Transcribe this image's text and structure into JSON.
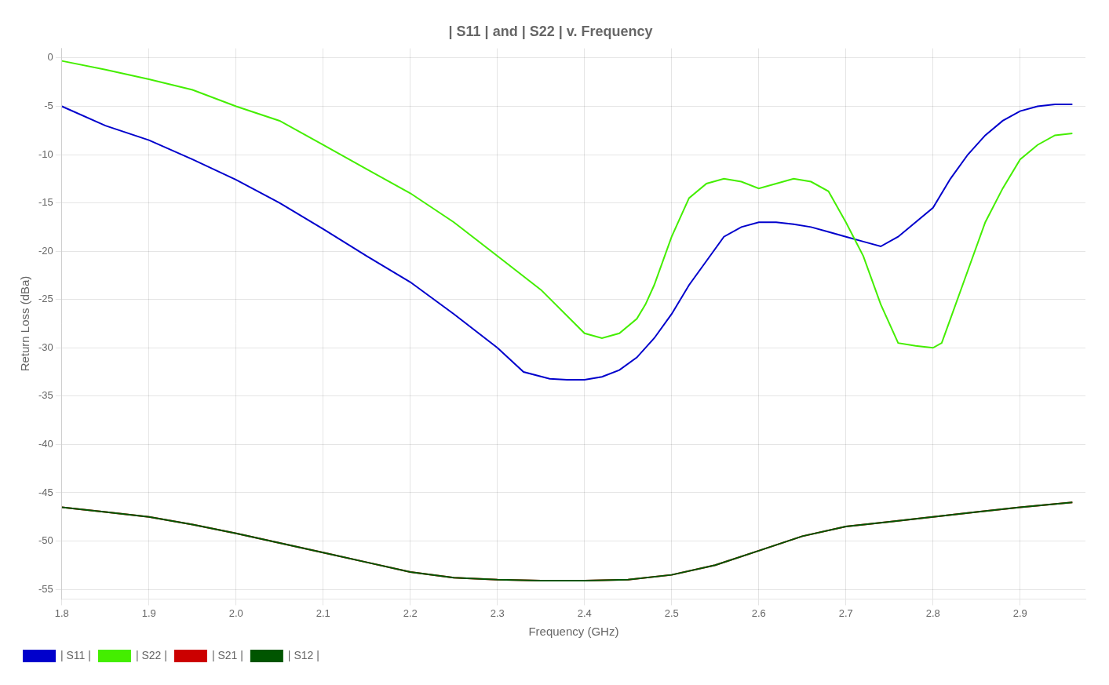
{
  "chart_data": {
    "type": "line",
    "title": "| S11 | and | S22 | v. Frequency",
    "xlabel": "Frequency (GHz)",
    "ylabel": "Return Loss (dBa)",
    "xlim": [
      1.8,
      2.975
    ],
    "ylim": [
      -56,
      1
    ],
    "xticks": [
      1.8,
      1.9,
      {
        "value": 2.0,
        "label": "2.0"
      },
      2.1,
      2.2,
      2.3,
      2.4,
      2.5,
      2.6,
      2.7,
      2.8,
      2.9
    ],
    "yticks": [
      0,
      -5,
      -10,
      -15,
      -20,
      -25,
      -30,
      -35,
      -40,
      -45,
      -50,
      -55
    ],
    "grid": true,
    "legend": "lower left",
    "series": [
      {
        "name": "| S12 |",
        "color": "#005500",
        "x": [
          1.8,
          1.85,
          1.9,
          1.95,
          2.0,
          2.05,
          2.1,
          2.15,
          2.2,
          2.25,
          2.3,
          2.35,
          2.4,
          2.45,
          2.5,
          2.55,
          2.6,
          2.65,
          2.7,
          2.75,
          2.8,
          2.85,
          2.9,
          2.96
        ],
        "values": [
          -46.5,
          -47.0,
          -47.5,
          -48.3,
          -49.2,
          -50.2,
          -51.2,
          -52.2,
          -53.2,
          -53.8,
          -54.0,
          -54.1,
          -54.1,
          -54.0,
          -53.5,
          -52.5,
          -51.0,
          -49.5,
          -48.5,
          -48.0,
          -47.5,
          -47.0,
          -46.5,
          -46.0
        ]
      },
      {
        "name": "| S21 |",
        "color": "#cc0000",
        "x": [
          1.8,
          1.85,
          1.9,
          1.95,
          2.0,
          2.05,
          2.1,
          2.15,
          2.2,
          2.25,
          2.3,
          2.35,
          2.4,
          2.45,
          2.5,
          2.55,
          2.6,
          2.65,
          2.7,
          2.75,
          2.8,
          2.85,
          2.9,
          2.96
        ],
        "values": [
          -46.5,
          -47.0,
          -47.5,
          -48.3,
          -49.2,
          -50.2,
          -51.2,
          -52.2,
          -53.2,
          -53.8,
          -54.0,
          -54.1,
          -54.1,
          -54.0,
          -53.5,
          -52.5,
          -51.0,
          -49.5,
          -48.5,
          -48.0,
          -47.5,
          -47.0,
          -46.5,
          -46.0
        ]
      },
      {
        "name": "| S22 |",
        "color": "#44ee00",
        "x": [
          1.8,
          1.85,
          1.9,
          1.95,
          2.0,
          2.05,
          2.1,
          2.15,
          2.2,
          2.25,
          2.3,
          2.35,
          2.4,
          2.42,
          2.44,
          2.46,
          2.47,
          2.48,
          2.5,
          2.52,
          2.54,
          2.56,
          2.58,
          2.6,
          2.62,
          2.64,
          2.66,
          2.68,
          2.7,
          2.72,
          2.74,
          2.76,
          2.78,
          2.8,
          2.81,
          2.82,
          2.84,
          2.86,
          2.88,
          2.9,
          2.92,
          2.94,
          2.96
        ],
        "values": [
          -0.3,
          -1.2,
          -2.2,
          -3.3,
          -5.0,
          -6.5,
          -9.0,
          -11.5,
          -14.0,
          -17.0,
          -20.5,
          -24.0,
          -28.5,
          -29.0,
          -28.5,
          -27.0,
          -25.5,
          -23.5,
          -18.5,
          -14.5,
          -13.0,
          -12.5,
          -12.8,
          -13.5,
          -13.0,
          -12.5,
          -12.8,
          -13.8,
          -17.0,
          -20.5,
          -25.5,
          -29.5,
          -29.8,
          -30.0,
          -29.5,
          -27.0,
          -22.0,
          -17.0,
          -13.5,
          -10.5,
          -9.0,
          -8.0,
          -7.8
        ]
      },
      {
        "name": "| S11 |",
        "color": "#0000cc",
        "x": [
          1.8,
          1.85,
          1.9,
          1.95,
          2.0,
          2.05,
          2.1,
          2.15,
          2.2,
          2.25,
          2.3,
          2.33,
          2.36,
          2.38,
          2.4,
          2.42,
          2.44,
          2.46,
          2.48,
          2.5,
          2.52,
          2.54,
          2.56,
          2.58,
          2.6,
          2.62,
          2.64,
          2.66,
          2.68,
          2.7,
          2.72,
          2.74,
          2.76,
          2.78,
          2.8,
          2.82,
          2.84,
          2.86,
          2.88,
          2.9,
          2.92,
          2.94,
          2.96
        ],
        "values": [
          -5.0,
          -7.0,
          -8.5,
          -10.5,
          -12.6,
          -15.0,
          -17.7,
          -20.5,
          -23.2,
          -26.5,
          -30.0,
          -32.5,
          -33.2,
          -33.3,
          -33.3,
          -33.0,
          -32.3,
          -31.0,
          -29.0,
          -26.5,
          -23.5,
          -21.0,
          -18.5,
          -17.5,
          -17.0,
          -17.0,
          -17.2,
          -17.5,
          -18.0,
          -18.5,
          -19.0,
          -19.5,
          -18.5,
          -17.0,
          -15.5,
          -12.5,
          -10.0,
          -8.0,
          -6.5,
          -5.5,
          -5.0,
          -4.8,
          -4.8
        ]
      }
    ]
  }
}
